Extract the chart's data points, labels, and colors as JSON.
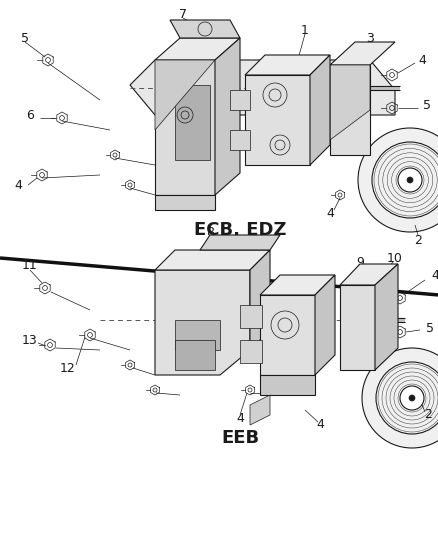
{
  "background_color": "#ffffff",
  "fig_width": 4.39,
  "fig_height": 5.33,
  "dpi": 100,
  "label_ecb_edz": "ECB, EDZ",
  "label_eeb": "EEB",
  "line_color": "#1a1a1a",
  "text_color": "#1a1a1a",
  "gray_fill": "#d8d8d8",
  "light_gray": "#eeeeee"
}
